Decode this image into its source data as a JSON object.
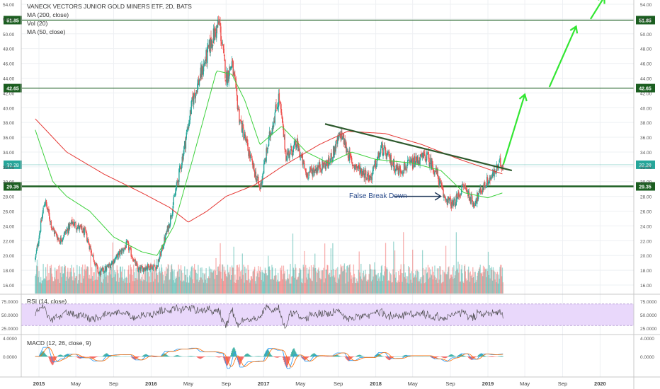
{
  "title": "VANECK VECTORS JUNIOR GOLD MINERS ETF, 2D, BATS",
  "indicators": [
    "MA (200, close)",
    "Vol (20)",
    "MA (50, close)"
  ],
  "annotation": "False Break Down",
  "rsi_label": "RSI (14, close)",
  "macd_label": "MACD (12, 26, close, 9)",
  "colors": {
    "up": "#26a69a",
    "down": "#ef5350",
    "ma200": "#e53935",
    "ma50": "#3dd13d",
    "level": "#1b5e20",
    "trend": "#2e5a2e",
    "arrow": "#33e633",
    "rsi_band": "#e9d8fb",
    "annotation_text": "#2b4c8c",
    "annotation_arrow": "#1d3557"
  },
  "chart_data": [
    {
      "type": "candlestick",
      "title": "VANECK VECTORS JUNIOR GOLD MINERS ETF, 2D, BATS",
      "x_tick_labels": [
        "2015",
        "May",
        "Sep",
        "2016",
        "May",
        "Sep",
        "2017",
        "May",
        "Sep",
        "2018",
        "May",
        "Sep",
        "2019",
        "May",
        "Sep",
        "2020"
      ],
      "x_tick_dates": [
        "2015-01-01",
        "2015-05-01",
        "2015-09-01",
        "2016-01-01",
        "2016-05-01",
        "2016-09-01",
        "2017-01-01",
        "2017-05-01",
        "2017-09-01",
        "2018-01-01",
        "2018-05-01",
        "2018-09-01",
        "2019-01-01",
        "2019-05-01",
        "2019-09-01",
        "2020-01-01"
      ],
      "y_tick_labels": [
        "54.00",
        "52.00",
        "50.00",
        "48.00",
        "46.00",
        "44.00",
        "42.00",
        "40.00",
        "38.00",
        "36.00",
        "34.00",
        "32.00",
        "30.00",
        "28.00",
        "26.00",
        "24.00",
        "22.00",
        "20.00",
        "18.00",
        "16.00"
      ],
      "ylim": [
        15,
        55
      ],
      "horizontal_levels": [
        {
          "value": 51.85,
          "label": "51.85"
        },
        {
          "value": 42.65,
          "label": "42.65"
        },
        {
          "value": 29.35,
          "label": "29.35"
        }
      ],
      "last_price": {
        "value": 32.28,
        "label": "32.28"
      },
      "price_path": [
        {
          "date": "2014-12-20",
          "price": 19.5
        },
        {
          "date": "2015-01-20",
          "price": 27.5
        },
        {
          "date": "2015-02-15",
          "price": 23.5
        },
        {
          "date": "2015-03-10",
          "price": 22.0
        },
        {
          "date": "2015-04-20",
          "price": 24.5
        },
        {
          "date": "2015-06-01",
          "price": 23.0
        },
        {
          "date": "2015-07-15",
          "price": 17.5
        },
        {
          "date": "2015-08-15",
          "price": 18.5
        },
        {
          "date": "2015-09-15",
          "price": 20.0
        },
        {
          "date": "2015-10-15",
          "price": 21.5
        },
        {
          "date": "2015-11-20",
          "price": 18.0
        },
        {
          "date": "2015-12-20",
          "price": 18.5
        },
        {
          "date": "2016-01-20",
          "price": 18.5
        },
        {
          "date": "2016-03-01",
          "price": 24.5
        },
        {
          "date": "2016-04-15",
          "price": 34.0
        },
        {
          "date": "2016-05-15",
          "price": 41.0
        },
        {
          "date": "2016-06-15",
          "price": 45.0
        },
        {
          "date": "2016-07-15",
          "price": 49.0
        },
        {
          "date": "2016-08-10",
          "price": 51.5
        },
        {
          "date": "2016-09-01",
          "price": 44.0
        },
        {
          "date": "2016-09-20",
          "price": 46.0
        },
        {
          "date": "2016-10-15",
          "price": 38.5
        },
        {
          "date": "2016-11-20",
          "price": 33.0
        },
        {
          "date": "2016-12-20",
          "price": 29.0
        },
        {
          "date": "2017-01-20",
          "price": 36.0
        },
        {
          "date": "2017-02-20",
          "price": 41.5
        },
        {
          "date": "2017-03-15",
          "price": 33.5
        },
        {
          "date": "2017-04-20",
          "price": 35.0
        },
        {
          "date": "2017-05-20",
          "price": 31.0
        },
        {
          "date": "2017-07-01",
          "price": 32.0
        },
        {
          "date": "2017-08-01",
          "price": 32.5
        },
        {
          "date": "2017-09-10",
          "price": 36.5
        },
        {
          "date": "2017-10-15",
          "price": 32.5
        },
        {
          "date": "2017-12-15",
          "price": 30.5
        },
        {
          "date": "2018-01-20",
          "price": 34.5
        },
        {
          "date": "2018-02-15",
          "price": 33.0
        },
        {
          "date": "2018-03-15",
          "price": 31.5
        },
        {
          "date": "2018-05-01",
          "price": 32.5
        },
        {
          "date": "2018-06-15",
          "price": 33.5
        },
        {
          "date": "2018-07-20",
          "price": 31.0
        },
        {
          "date": "2018-08-10",
          "price": 28.0
        },
        {
          "date": "2018-09-10",
          "price": 26.8
        },
        {
          "date": "2018-10-15",
          "price": 29.5
        },
        {
          "date": "2018-11-15",
          "price": 27.0
        },
        {
          "date": "2018-12-20",
          "price": 29.5
        },
        {
          "date": "2019-01-20",
          "price": 31.0
        },
        {
          "date": "2019-02-10",
          "price": 32.5
        },
        {
          "date": "2019-02-20",
          "price": 32.28
        }
      ],
      "ma200_path": [
        {
          "date": "2014-12-20",
          "price": 38.5
        },
        {
          "date": "2015-04-01",
          "price": 34.0
        },
        {
          "date": "2015-08-01",
          "price": 31.0
        },
        {
          "date": "2015-12-01",
          "price": 28.5
        },
        {
          "date": "2016-03-01",
          "price": 26.5
        },
        {
          "date": "2016-05-01",
          "price": 24.5
        },
        {
          "date": "2016-07-01",
          "price": 26.0
        },
        {
          "date": "2016-09-01",
          "price": 28.0
        },
        {
          "date": "2016-12-01",
          "price": 29.5
        },
        {
          "date": "2017-03-01",
          "price": 32.0
        },
        {
          "date": "2017-07-01",
          "price": 35.0
        },
        {
          "date": "2017-10-01",
          "price": 36.8
        },
        {
          "date": "2018-02-01",
          "price": 36.5
        },
        {
          "date": "2018-06-01",
          "price": 35.0
        },
        {
          "date": "2018-10-01",
          "price": 33.0
        },
        {
          "date": "2019-02-20",
          "price": 31.0
        }
      ],
      "ma50_path": [
        {
          "date": "2014-12-20",
          "price": 37.0
        },
        {
          "date": "2015-02-15",
          "price": 30.0
        },
        {
          "date": "2015-04-01",
          "price": 28.0
        },
        {
          "date": "2015-06-15",
          "price": 26.0
        },
        {
          "date": "2015-09-01",
          "price": 22.5
        },
        {
          "date": "2015-12-01",
          "price": 20.5
        },
        {
          "date": "2016-01-20",
          "price": 20.0
        },
        {
          "date": "2016-03-15",
          "price": 24.0
        },
        {
          "date": "2016-05-15",
          "price": 33.0
        },
        {
          "date": "2016-08-01",
          "price": 45.0
        },
        {
          "date": "2016-09-20",
          "price": 44.5
        },
        {
          "date": "2016-11-01",
          "price": 41.0
        },
        {
          "date": "2016-12-20",
          "price": 35.0
        },
        {
          "date": "2017-03-01",
          "price": 37.5
        },
        {
          "date": "2017-05-20",
          "price": 34.0
        },
        {
          "date": "2017-08-01",
          "price": 32.5
        },
        {
          "date": "2017-10-15",
          "price": 34.0
        },
        {
          "date": "2018-01-01",
          "price": 33.0
        },
        {
          "date": "2018-05-01",
          "price": 32.5
        },
        {
          "date": "2018-08-01",
          "price": 31.5
        },
        {
          "date": "2018-10-15",
          "price": 28.5
        },
        {
          "date": "2019-01-01",
          "price": 27.8
        },
        {
          "date": "2019-02-20",
          "price": 28.5
        }
      ],
      "trendline": [
        {
          "date": "2017-07-20",
          "price": 37.8
        },
        {
          "date": "2019-03-20",
          "price": 31.5
        }
      ],
      "projection_arrows": [
        {
          "from": {
            "date": "2019-02-20",
            "price": 32.3
          },
          "to": {
            "date": "2019-05-01",
            "price": 41.8
          }
        },
        {
          "from": {
            "date": "2019-07-20",
            "price": 42.8
          },
          "to": {
            "date": "2019-10-15",
            "price": 51.0
          }
        },
        {
          "from": {
            "date": "2019-12-01",
            "price": 52.0
          },
          "to": {
            "date": "2020-01-15",
            "price": 55.0
          }
        }
      ],
      "annotation_arrow": {
        "from": {
          "date": "2018-03-01",
          "price": 28.0
        },
        "to": {
          "date": "2018-08-01",
          "price": 28.0
        }
      }
    },
    {
      "type": "bar",
      "title": "Vol (20)",
      "note": "Volume bars overlaid at the bottom of the price pane, unscaled"
    },
    {
      "type": "line",
      "title": "RSI (14, close)",
      "y_tick_labels": [
        "75.0000",
        "50.0000",
        "25.0000"
      ],
      "ylim": [
        15,
        85
      ],
      "band": [
        30,
        70
      ]
    },
    {
      "type": "line",
      "title": "MACD (12, 26, close, 9)",
      "y_tick_labels": [
        "4.0000",
        "0.0000"
      ],
      "ylim": [
        -4.5,
        4.5
      ]
    }
  ]
}
